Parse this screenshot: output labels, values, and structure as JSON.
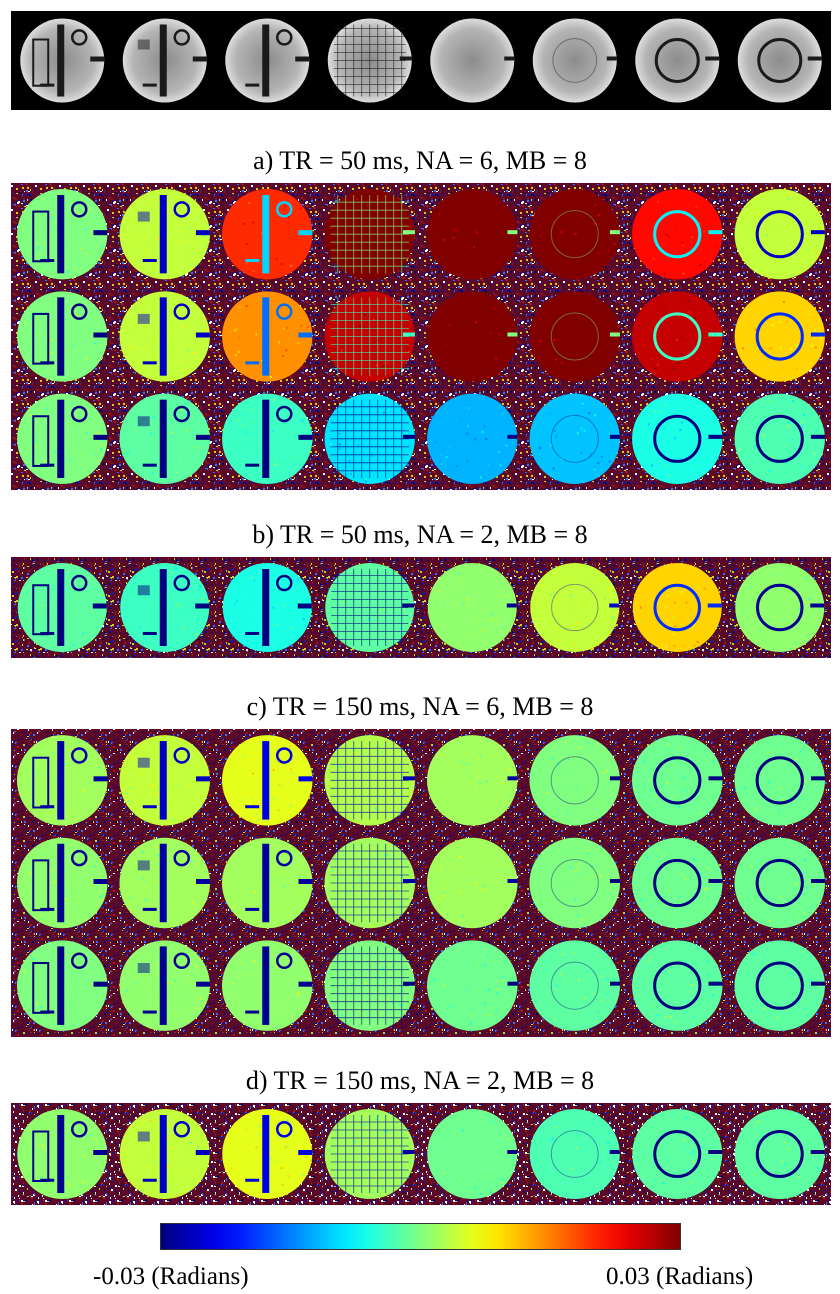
{
  "figure": {
    "panels": [
      {
        "id": "magnitude",
        "label": "",
        "rows": 1
      },
      {
        "id": "a",
        "label": "a) TR = 50 ms, NA = 6, MB = 8",
        "rows": 3
      },
      {
        "id": "b",
        "label": "b) TR = 50 ms, NA = 2, MB = 8",
        "rows": 1
      },
      {
        "id": "c",
        "label": "c) TR = 150 ms, NA = 6, MB = 8",
        "rows": 3
      },
      {
        "id": "d",
        "label": "d) TR = 150 ms, NA = 2, MB = 8",
        "rows": 1
      }
    ],
    "slices_per_row": 8,
    "colorbar": {
      "min_label": "-0.03 (Radians)",
      "max_label": "0.03 (Radians)",
      "colormap": "jet",
      "range": [
        -0.03,
        0.03
      ]
    },
    "phase_maps": {
      "a": [
        [
          0.0,
          0.004,
          0.02,
          0.03,
          0.03,
          0.03,
          0.022,
          0.004
        ],
        [
          0.0,
          0.004,
          0.014,
          0.026,
          0.03,
          0.03,
          0.026,
          0.01
        ],
        [
          0.0,
          -0.002,
          -0.004,
          -0.009,
          -0.012,
          -0.011,
          -0.006,
          -0.003
        ]
      ],
      "b": [
        [
          -0.002,
          -0.004,
          -0.006,
          -0.002,
          0.001,
          0.004,
          0.01,
          0.001
        ]
      ],
      "c": [
        [
          0.002,
          0.004,
          0.006,
          0.003,
          0.002,
          0.0,
          -0.001,
          -0.001
        ],
        [
          0.001,
          0.002,
          0.002,
          0.002,
          0.002,
          0.0,
          -0.001,
          -0.001
        ],
        [
          0.0,
          0.001,
          0.001,
          0.0,
          -0.001,
          -0.002,
          -0.002,
          -0.002
        ]
      ],
      "d": [
        [
          0.001,
          0.004,
          0.006,
          0.002,
          -0.001,
          -0.003,
          -0.002,
          -0.002
        ]
      ]
    }
  }
}
